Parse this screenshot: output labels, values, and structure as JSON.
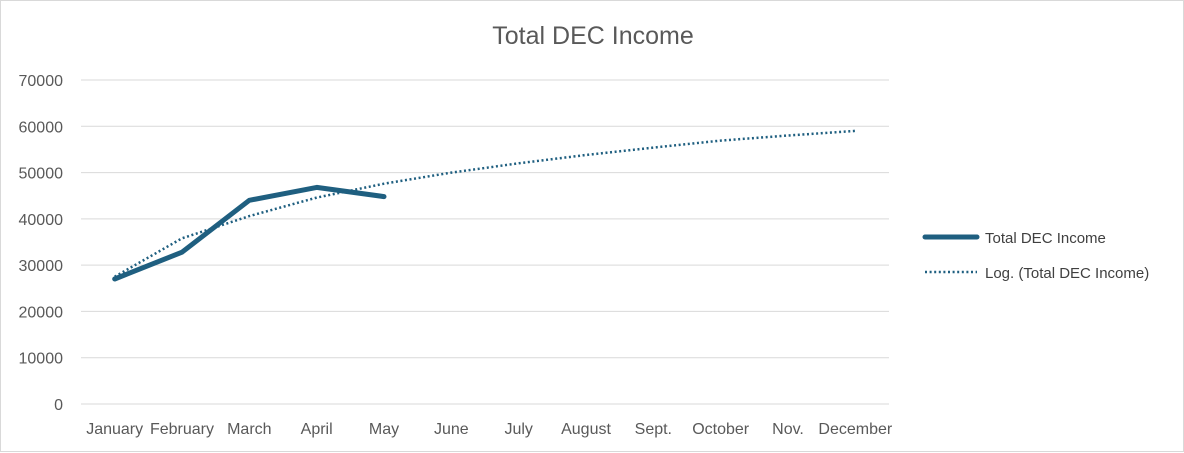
{
  "chart_data": {
    "type": "line",
    "title": "Total DEC Income",
    "categories": [
      "January",
      "February",
      "March",
      "April",
      "May",
      "June",
      "July",
      "August",
      "Sept.",
      "October",
      "Nov.",
      "December"
    ],
    "y_ticks": [
      "0",
      "10000",
      "20000",
      "30000",
      "40000",
      "50000",
      "60000",
      "70000"
    ],
    "ylim": [
      0,
      70000
    ],
    "grid": true,
    "legend_position": "right",
    "series": [
      {
        "name": "Total DEC Income",
        "style": "solid",
        "color": "#1f5f80",
        "values": [
          27000,
          32800,
          44000,
          46800,
          44800,
          null,
          null,
          null,
          null,
          null,
          null,
          null
        ]
      },
      {
        "name": "Log. (Total DEC Income)",
        "style": "dotted",
        "color": "#1f5f80",
        "values": [
          27500,
          35800,
          40600,
          44600,
          47600,
          50000,
          52000,
          53800,
          55400,
          56900,
          58000,
          59000
        ]
      }
    ]
  }
}
